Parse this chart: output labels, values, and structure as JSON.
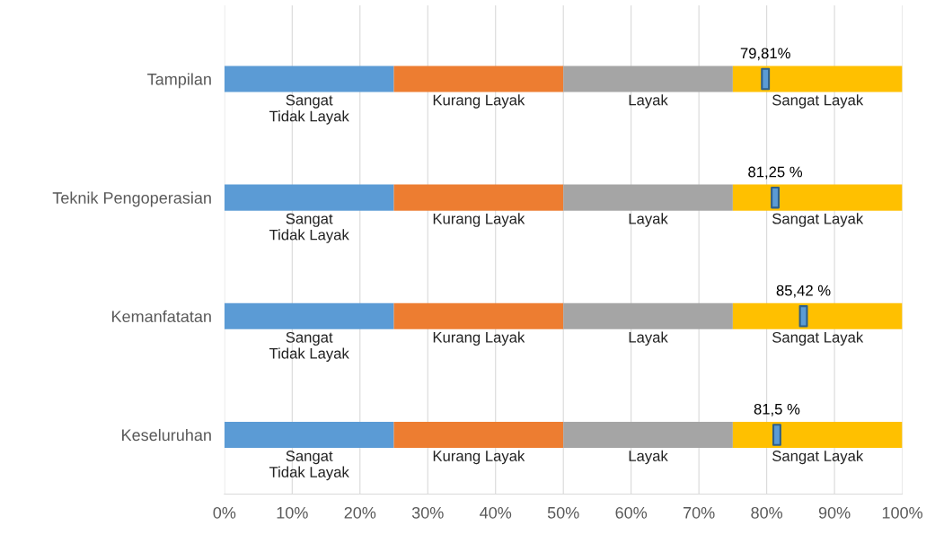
{
  "chart_data": {
    "type": "bar",
    "orientation": "horizontal",
    "stacked": true,
    "categories": [
      "Tampilan",
      "Teknik Pengoperasian",
      "Kemanfatatan",
      "Keseluruhan"
    ],
    "series": [
      {
        "name": "Sangat\nTidak Layak",
        "color": "#5b9bd5",
        "values": [
          25,
          25,
          25,
          25
        ]
      },
      {
        "name": "Kurang Layak",
        "color": "#ed7d31",
        "values": [
          25,
          25,
          25,
          25
        ]
      },
      {
        "name": "Layak",
        "color": "#a5a5a5",
        "values": [
          25,
          25,
          25,
          25
        ]
      },
      {
        "name": "Sangat Layak",
        "color": "#ffc000",
        "values": [
          25,
          25,
          25,
          25
        ]
      },
      {
        "type": "scatter",
        "color": "#5b9bd5",
        "marker": "square",
        "values": [
          79.81,
          81.25,
          85.42,
          81.5
        ],
        "value_labels": [
          "79,81%",
          "81,25 %",
          "85,42 %",
          "81,5 %"
        ]
      }
    ],
    "xlim": [
      0,
      100
    ],
    "xticks": [
      {
        "value": 0,
        "label": "0%"
      },
      {
        "value": 10,
        "label": "10%"
      },
      {
        "value": 20,
        "label": "20%"
      },
      {
        "value": 30,
        "label": "30%"
      },
      {
        "value": 40,
        "label": "40%"
      },
      {
        "value": 50,
        "label": "50%"
      },
      {
        "value": 60,
        "label": "60%"
      },
      {
        "value": 70,
        "label": "70%"
      },
      {
        "value": 80,
        "label": "80%"
      },
      {
        "value": 90,
        "label": "90%"
      },
      {
        "value": 100,
        "label": "100%"
      }
    ],
    "grid": "x",
    "legend": false
  }
}
